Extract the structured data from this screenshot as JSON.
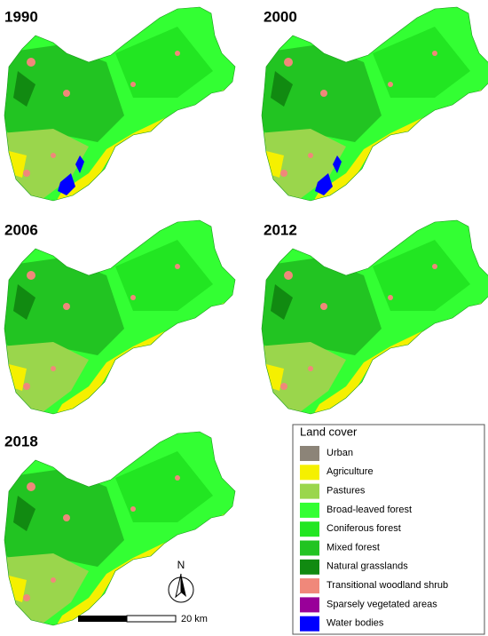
{
  "panels": [
    {
      "title": "1990"
    },
    {
      "title": "2000"
    },
    {
      "title": "2006"
    },
    {
      "title": "2012"
    },
    {
      "title": "2018"
    }
  ],
  "legend": {
    "title": "Land cover",
    "items": [
      {
        "label": "Urban",
        "color": "#8c8478"
      },
      {
        "label": "Agriculture",
        "color": "#f5f000"
      },
      {
        "label": "Pastures",
        "color": "#9ad64c"
      },
      {
        "label": "Broad-leaved forest",
        "color": "#33ff33"
      },
      {
        "label": "Coniferous forest",
        "color": "#22e622"
      },
      {
        "label": "Mixed forest",
        "color": "#22c422"
      },
      {
        "label": "Natural grasslands",
        "color": "#118a11"
      },
      {
        "label": "Transitional woodland shrub",
        "color": "#f0887a"
      },
      {
        "label": "Sparsely vegetated areas",
        "color": "#990099"
      },
      {
        "label": "Water bodies",
        "color": "#0000ff"
      }
    ]
  },
  "north": "N",
  "scale": {
    "label": "20 km"
  }
}
